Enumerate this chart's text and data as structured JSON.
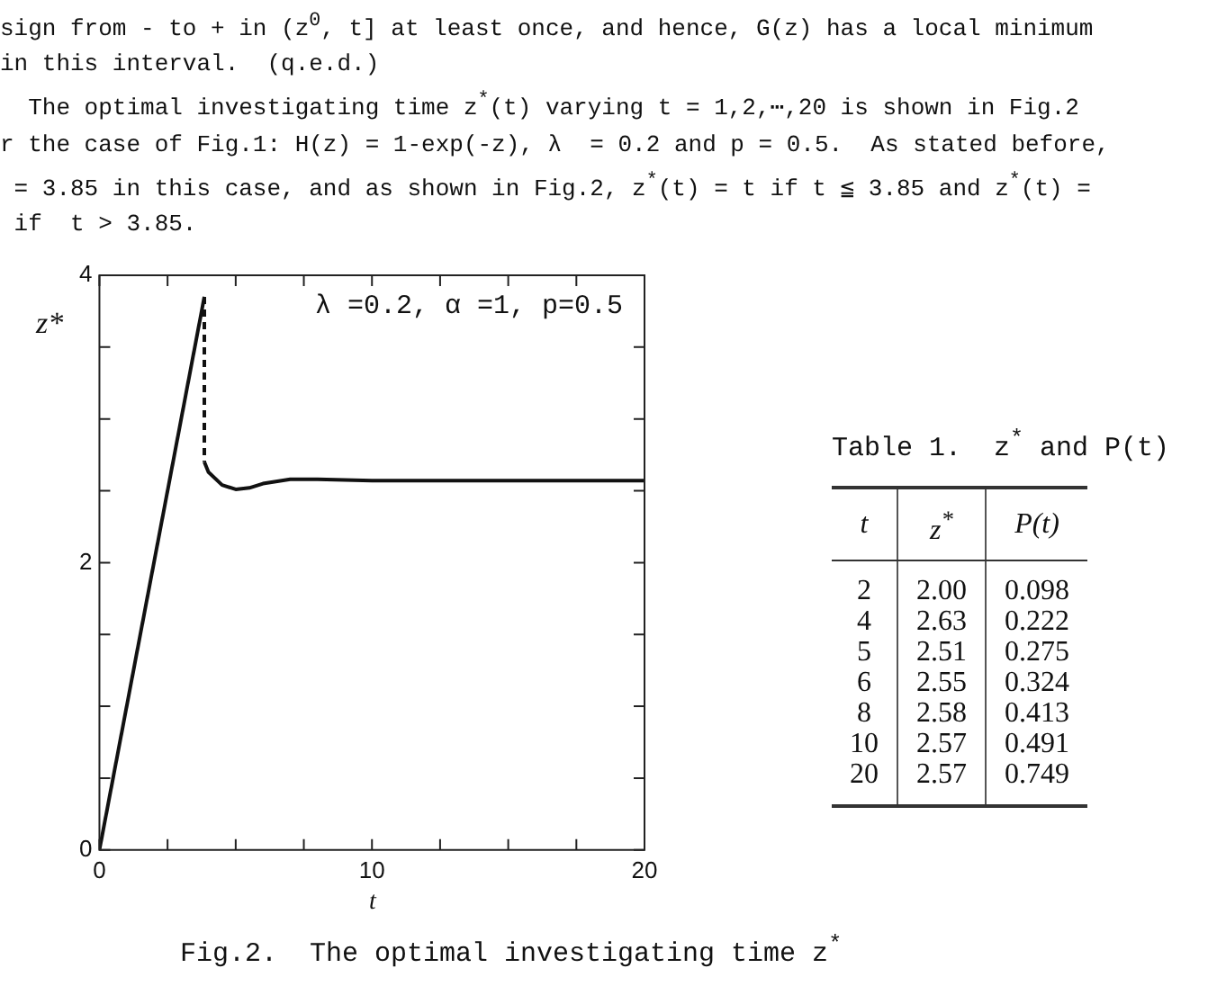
{
  "chart_data": [
    {
      "type": "line",
      "xlabel": "t",
      "ylabel": "z*",
      "xlim": [
        0,
        20
      ],
      "ylim": [
        0,
        4
      ],
      "xticks": [
        0,
        {
          "value": 2.5,
          "label": null
        },
        {
          "value": 5,
          "label": null
        },
        {
          "value": 7.5,
          "label": null
        },
        10,
        {
          "value": 12.5,
          "label": null
        },
        {
          "value": 15,
          "label": null
        },
        {
          "value": 17.5,
          "label": null
        },
        20
      ],
      "yticks": [
        0,
        {
          "value": 0.5,
          "label": null
        },
        {
          "value": 1,
          "label": null
        },
        {
          "value": 1.5,
          "label": null
        },
        2,
        {
          "value": 2.5,
          "label": null
        },
        {
          "value": 3,
          "label": null
        },
        {
          "value": 3.5,
          "label": null
        },
        4
      ],
      "grid": false,
      "legend": false,
      "marker": "none",
      "series": [
        {
          "color": "#111111",
          "line_style": "solid",
          "x": [
            0,
            3.85
          ],
          "values": [
            0,
            3.85
          ]
        },
        {
          "color": "#111111",
          "line_style": "solid",
          "x": [
            3.85,
            4,
            4.5,
            5,
            5.5,
            6,
            7,
            8,
            10,
            15,
            20
          ],
          "values": [
            2.7,
            2.63,
            2.54,
            2.51,
            2.52,
            2.55,
            2.58,
            2.58,
            2.57,
            2.57,
            2.57
          ]
        },
        {
          "color": "#111111",
          "line_style": "dashed",
          "x": [
            3.85,
            3.85
          ],
          "values": [
            3.85,
            2.7
          ]
        }
      ],
      "annotations": [
        "λ =0.2, α =1, p=0.5",
        "Fig.2.  The optimal investigating time z$^{*}$",
        "sign from - to + in (z$^{0}$, t] at least once, and hence, G(z) has a local minimum",
        "in this interval.  (q.e.d.)",
        "  The optimal investigating time z$^{*}$(t) varying t = 1,2,⋯,20 is shown in Fig.2",
        "r the case of Fig.1: H(z) = 1-exp(-z), λ  = 0.2 and p = 0.5.  As stated before,",
        " = 3.85 in this case, and as shown in Fig.2, z$^{*}$(t) = t if t ≦ 3.85 and z$^{*}$(t) =",
        " if  t > 3.85."
      ]
    },
    {
      "type": "other",
      "title": "Table 1.  z$^{*}$ and P(t)",
      "annotations": [
        "t",
        "z$^{*}$",
        "P(t)",
        "2",
        "2.00",
        "0.098",
        "4",
        "2.63",
        "0.222",
        "5",
        "2.51",
        "0.275",
        "6",
        "2.55",
        "0.324",
        "8",
        "2.58",
        "0.413",
        "10",
        "2.57",
        "0.491",
        "20",
        "2.57",
        "0.749"
      ]
    }
  ]
}
